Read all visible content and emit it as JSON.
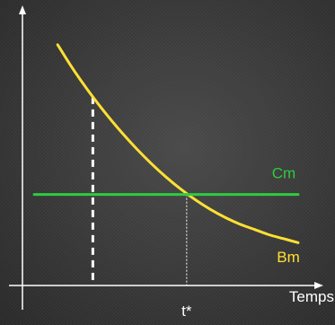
{
  "chart_data": {
    "type": "line",
    "xlabel": "Temps",
    "ylabel": "",
    "grid": false,
    "x_ticks": [
      {
        "x": 5.2,
        "label": "t*"
      }
    ],
    "series": [
      {
        "name": "Bm",
        "kind": "decreasing-curve",
        "color": "#ffe033",
        "x": [
          0.8,
          1.2,
          1.6,
          2.0,
          2.5,
          3.0,
          3.5,
          4.0,
          4.5,
          5.0,
          5.5,
          6.0,
          6.5,
          7.0,
          7.5,
          8.0,
          8.5,
          9.0
        ],
        "values": [
          9.0,
          8.3,
          7.65,
          7.05,
          6.35,
          5.7,
          5.1,
          4.55,
          4.05,
          3.6,
          3.2,
          2.85,
          2.55,
          2.3,
          2.1,
          1.9,
          1.75,
          1.6
        ]
      },
      {
        "name": "Cm",
        "kind": "horizontal-line",
        "color": "#2ecc40",
        "x": [
          0.0,
          9.0
        ],
        "values": [
          3.4,
          3.4
        ]
      }
    ],
    "annotations": [
      {
        "kind": "vertical-dashed",
        "x": 2.0,
        "y_top": 7.05,
        "style": "thick"
      },
      {
        "kind": "vertical-dotted",
        "x": 5.2,
        "y_top": 3.4,
        "style": "thin"
      }
    ],
    "xlim": [
      -0.4,
      9.4
    ],
    "ylim": [
      0,
      10
    ]
  }
}
